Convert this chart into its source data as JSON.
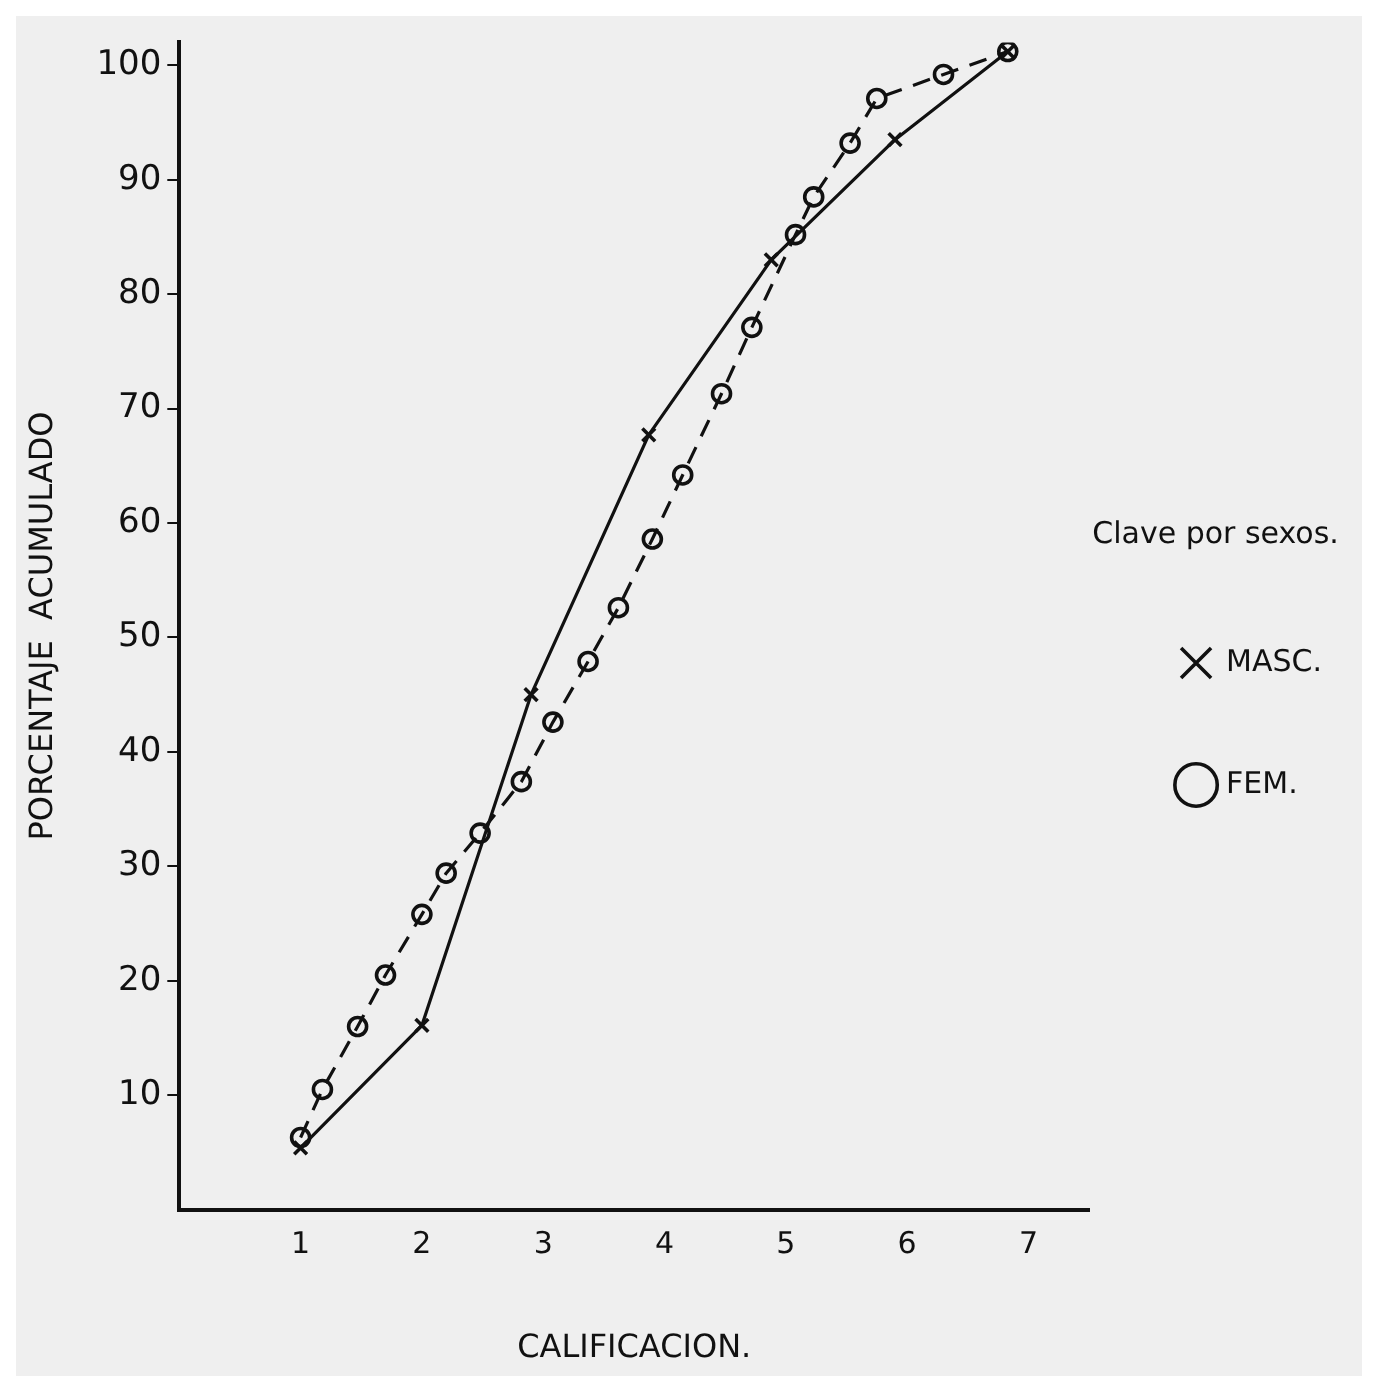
{
  "chart_data": {
    "type": "line",
    "xlabel": "CALIFICACION.",
    "ylabel": "PORCENTAJE  ACUMULADO",
    "legend_title": "Clave por sexos.",
    "legend": "right",
    "grid": false,
    "xlim": [
      0,
      7.5
    ],
    "xticks": [
      1,
      2,
      3,
      4,
      5,
      6,
      7
    ],
    "ylim": [
      0,
      102
    ],
    "yticks": [
      10,
      20,
      30,
      40,
      50,
      60,
      70,
      80,
      90,
      100
    ],
    "series": [
      {
        "name": "MASC.",
        "color": "#111111",
        "marker": "cross",
        "line_style": "solid",
        "x": [
          1,
          2,
          2.9,
          3.87,
          4.88,
          5.9,
          6.83
        ],
        "values": [
          5.4,
          16.1,
          45,
          67.7,
          83,
          93.5,
          101.2
        ]
      },
      {
        "name": "FEM.",
        "color": "#111111",
        "marker": "circle",
        "line_style": "dashed",
        "x": [
          1,
          1.18,
          1.47,
          1.7,
          2.0,
          2.2,
          2.48,
          2.82,
          3.08,
          3.37,
          3.62,
          3.9,
          4.15,
          4.47,
          4.72,
          5.08,
          5.23,
          5.53,
          5.75,
          6.3,
          6.83
        ],
        "values": [
          6.3,
          10.5,
          16,
          20.5,
          25.8,
          29.4,
          32.9,
          37.4,
          42.6,
          47.9,
          52.6,
          58.6,
          64.2,
          71.3,
          77.1,
          85.2,
          88.5,
          93.2,
          97.1,
          99.2,
          101.2
        ]
      }
    ]
  }
}
